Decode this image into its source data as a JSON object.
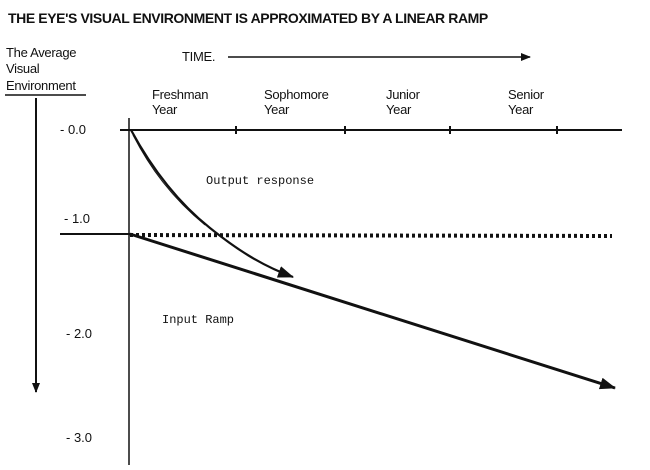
{
  "title": "THE EYE'S VISUAL ENVIRONMENT IS APPROXIMATED BY A LINEAR RAMP",
  "y_axis": {
    "label_lines": [
      "The Average",
      "Visual",
      "Environment"
    ],
    "ticks": [
      "- 0.0",
      "- 1.0",
      "- 2.0",
      "- 3.0"
    ]
  },
  "x_axis": {
    "label": "TIME.",
    "periods": [
      {
        "line1": "Freshman",
        "line2": "Year"
      },
      {
        "line1": "Sophomore",
        "line2": "Year"
      },
      {
        "line1": "Junior",
        "line2": "Year"
      },
      {
        "line1": "Senior",
        "line2": "Year"
      }
    ]
  },
  "annotations": {
    "output": "Output response",
    "input": "Input Ramp"
  },
  "colors": {
    "ink": "#111111",
    "background": "#ffffff"
  }
}
